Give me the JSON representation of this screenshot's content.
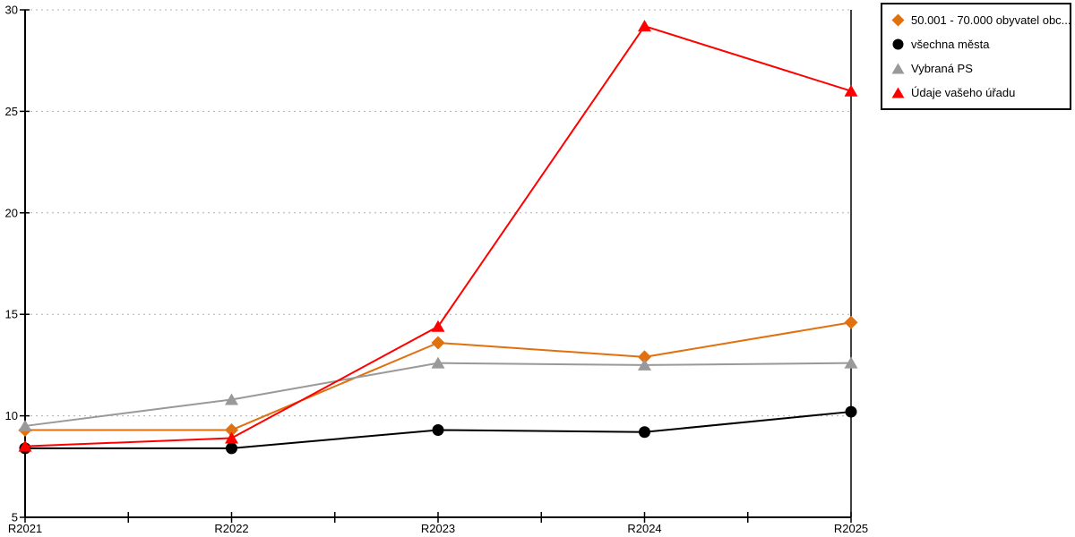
{
  "chart_data": {
    "type": "line",
    "title": "",
    "xlabel": "",
    "ylabel": "",
    "categories": [
      "R2021",
      "R2022",
      "R2023",
      "R2024",
      "R2025"
    ],
    "ylim": [
      5,
      30
    ],
    "yticks": [
      5,
      10,
      15,
      20,
      25,
      30
    ],
    "grid": "horizontal-dashed",
    "legend_position": "outside-top-right",
    "series": [
      {
        "name": "50.001 - 70.000 obyvatel obc...",
        "color": "#E1700F",
        "marker": "diamond",
        "values": [
          9.3,
          9.3,
          13.6,
          12.9,
          14.6
        ]
      },
      {
        "name": "všechna města",
        "color": "#000000",
        "marker": "circle",
        "values": [
          8.4,
          8.4,
          9.3,
          9.2,
          10.2
        ]
      },
      {
        "name": "Vybraná PS",
        "color": "#999999",
        "marker": "triangle",
        "values": [
          9.5,
          10.8,
          12.6,
          12.5,
          12.6
        ]
      },
      {
        "name": "Údaje vašeho úřadu",
        "color": "#FF0000",
        "marker": "triangle",
        "values": [
          8.5,
          8.9,
          14.4,
          29.2,
          26.0
        ]
      }
    ],
    "colors": {
      "gridline": "#b0b0b0",
      "axis": "#000000",
      "background": "#ffffff"
    }
  }
}
